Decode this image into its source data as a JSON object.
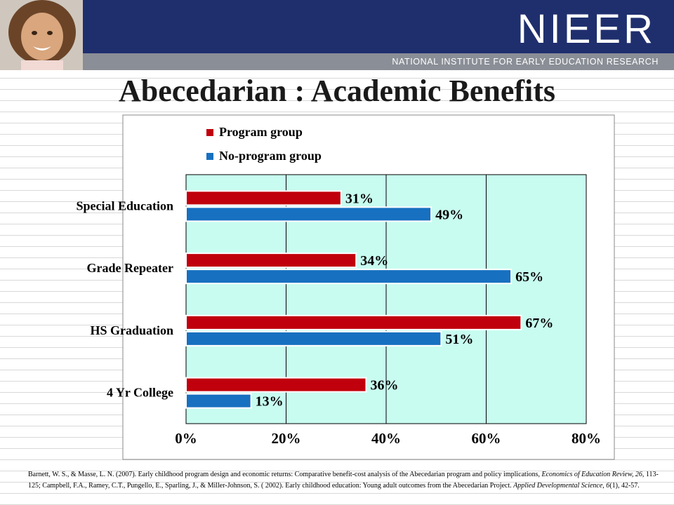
{
  "header": {
    "logo_text": "NIEER",
    "logo_subtitle": "NATIONAL INSTITUTE FOR EARLY EDUCATION RESEARCH"
  },
  "page_title": "Abecedarian : Academic Benefits",
  "colors": {
    "program": "#c0000c",
    "no_program": "#1770c0",
    "plot_bg": "#c8fcf0"
  },
  "chart_data": {
    "type": "bar",
    "orientation": "horizontal",
    "categories": [
      "Special Education",
      "Grade Repeater",
      "HS Graduation",
      "4 Yr College"
    ],
    "series": [
      {
        "name": "Program group",
        "values": [
          31,
          34,
          67,
          36
        ],
        "labels": [
          "31%",
          "34%",
          "67%",
          "36%"
        ]
      },
      {
        "name": "No-program group",
        "values": [
          49,
          65,
          51,
          13
        ],
        "labels": [
          "49%",
          "65%",
          "51%",
          "13%"
        ]
      }
    ],
    "xlim": [
      0,
      80
    ],
    "xticks": [
      "0%",
      "20%",
      "40%",
      "60%",
      "80%"
    ],
    "grid": true,
    "legend_position": "top"
  },
  "citation": {
    "part1": "Barnett, W. S., & Masse, L. N. (2007). Early childhood program design and economic returns: Comparative benefit-cost analysis of the Abecedarian program and policy implications, ",
    "journal1": "Economics of Education Review, 26",
    "part2": ", 113-125; Campbell, F.A., Ramey, C.T., Pungello, E., Sparling, J., & Miller-Johnson, S. ( 2002). Early childhood education: Young adult outcomes from the Abecedarian Project. ",
    "journal2": "Applied Developmental Science, 6",
    "part3": "(1), 42-57."
  }
}
